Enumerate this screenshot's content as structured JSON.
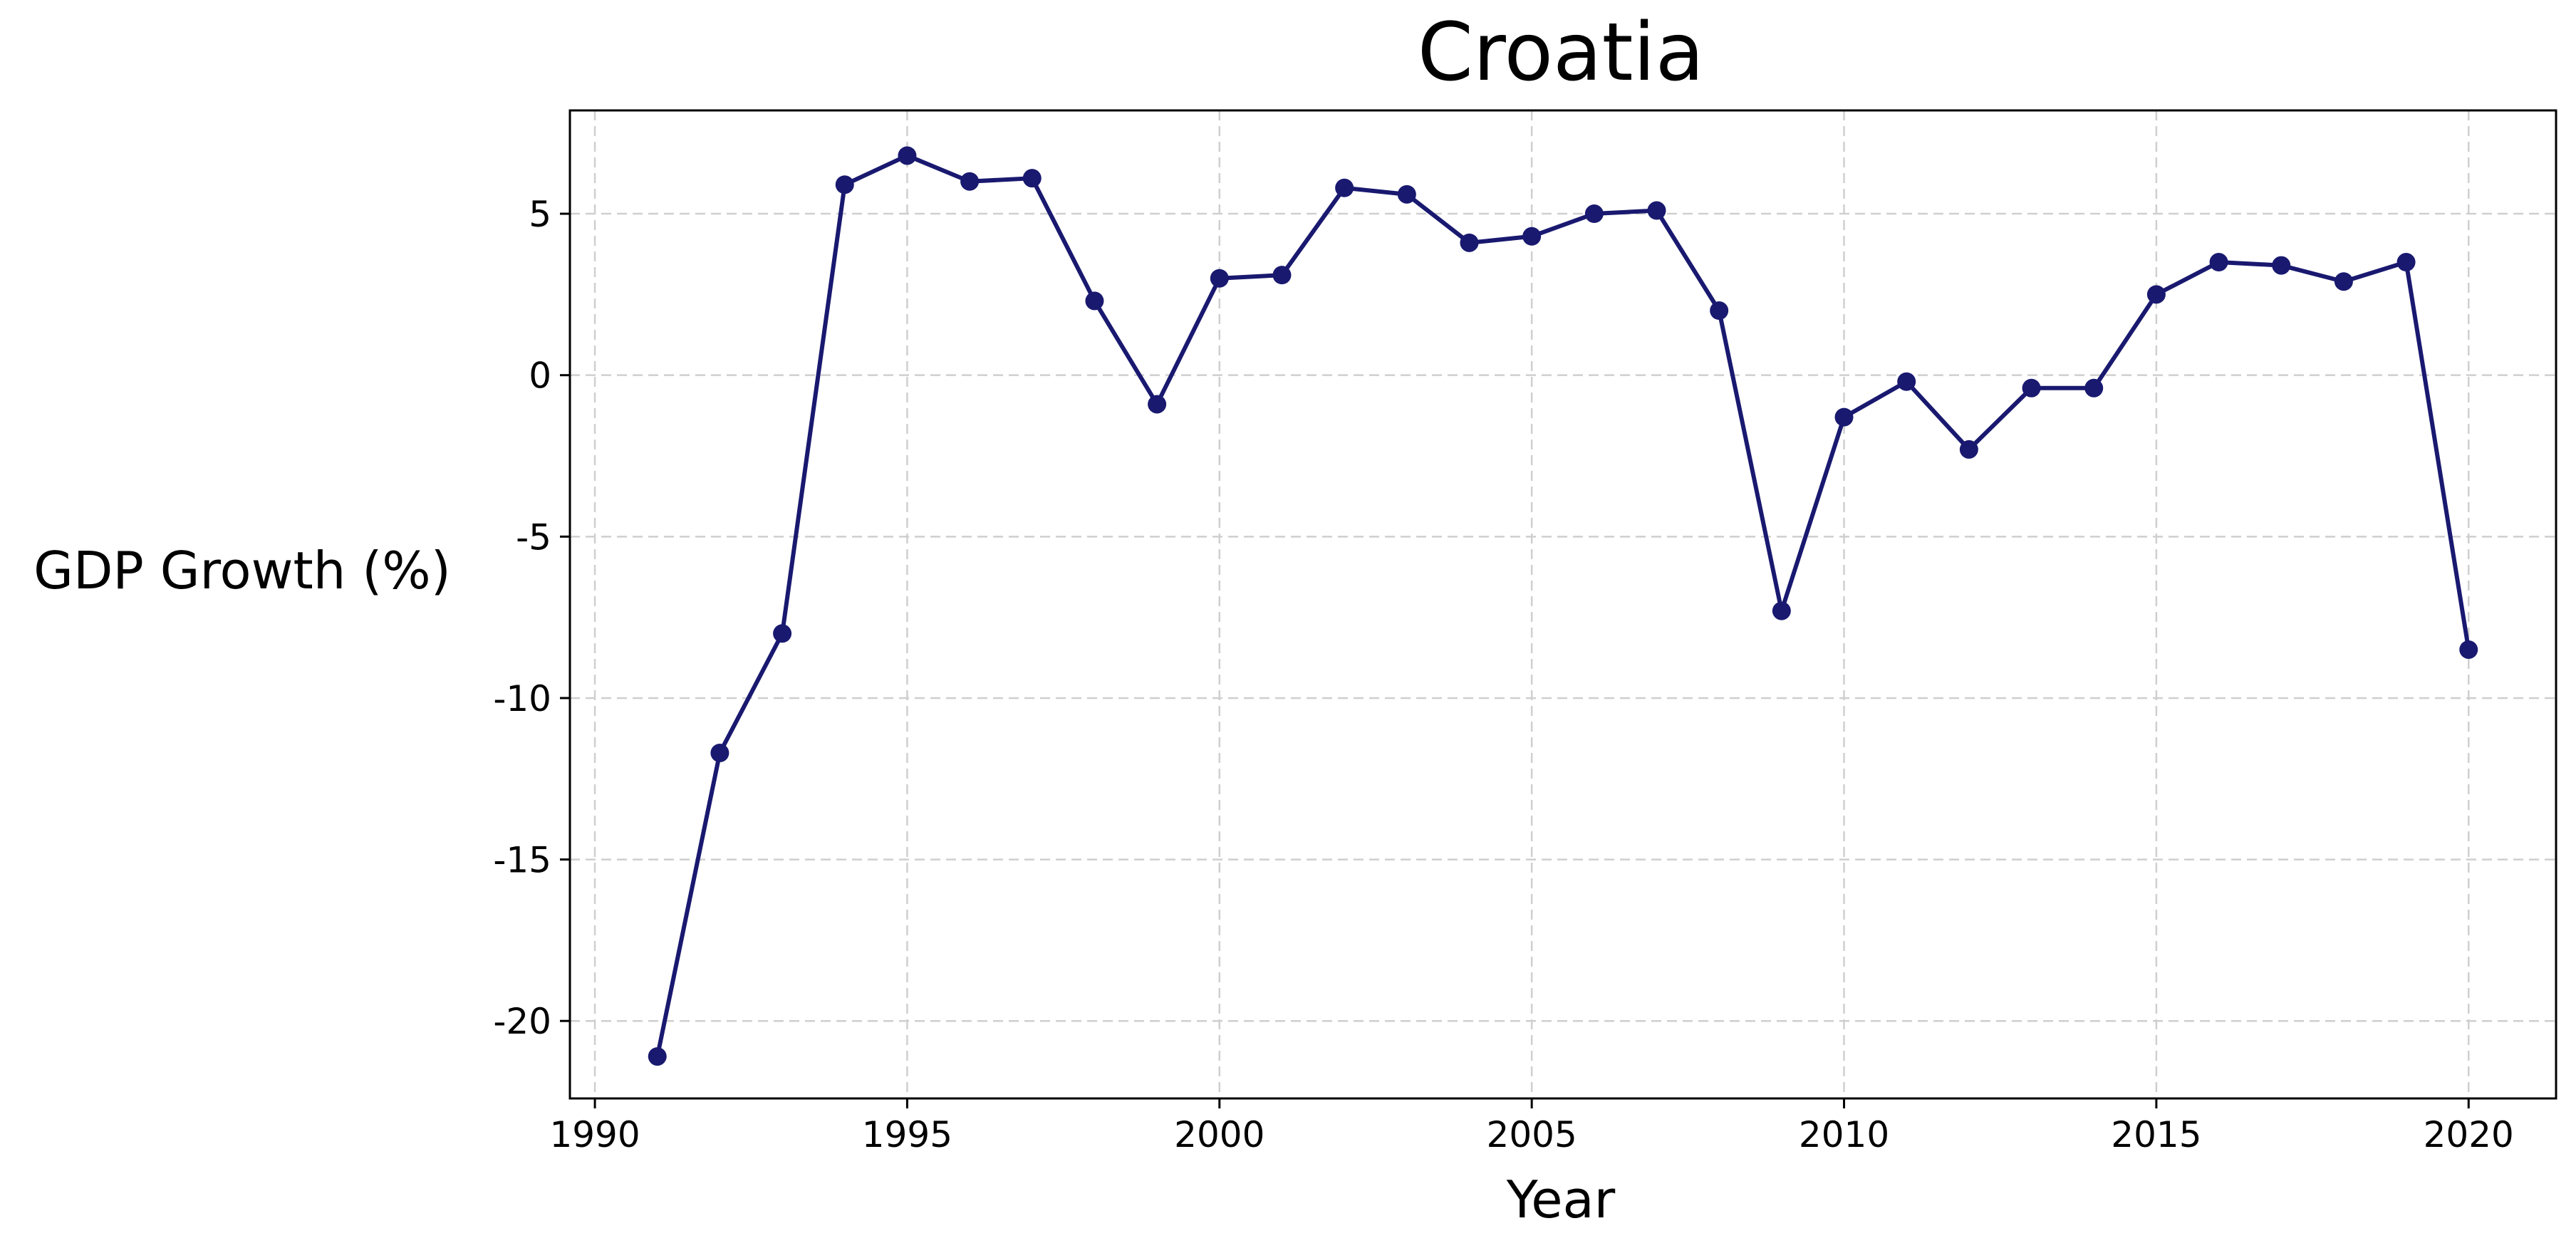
{
  "chart_data": {
    "type": "line",
    "title": "Croatia",
    "xlabel": "Year",
    "ylabel": "GDP Growth (%)",
    "xlim": [
      1989.6,
      2021.4
    ],
    "ylim": [
      -22.4,
      8.2
    ],
    "x_ticks": [
      1990,
      1995,
      2000,
      2005,
      2010,
      2015,
      2020
    ],
    "y_ticks": [
      5,
      0,
      -5,
      -10,
      -15,
      -20
    ],
    "grid": true,
    "legend": "none",
    "line_color": "#191970",
    "series": [
      {
        "x": [
          1991,
          1992,
          1993,
          1994,
          1995,
          1996,
          1997,
          1998,
          1999,
          2000,
          2001,
          2002,
          2003,
          2004,
          2005,
          2006,
          2007,
          2008,
          2009,
          2010,
          2011,
          2012,
          2013,
          2014,
          2015,
          2016,
          2017,
          2018,
          2019,
          2020
        ],
        "values": [
          -21.1,
          -11.7,
          -8.0,
          5.9,
          6.8,
          6.0,
          6.1,
          2.3,
          -0.9,
          3.0,
          3.1,
          5.8,
          5.6,
          4.1,
          4.3,
          5.0,
          5.1,
          2.0,
          -7.3,
          -1.3,
          -0.2,
          -2.3,
          -0.4,
          -0.4,
          2.5,
          3.5,
          3.4,
          2.9,
          3.5,
          -8.5
        ]
      }
    ]
  }
}
